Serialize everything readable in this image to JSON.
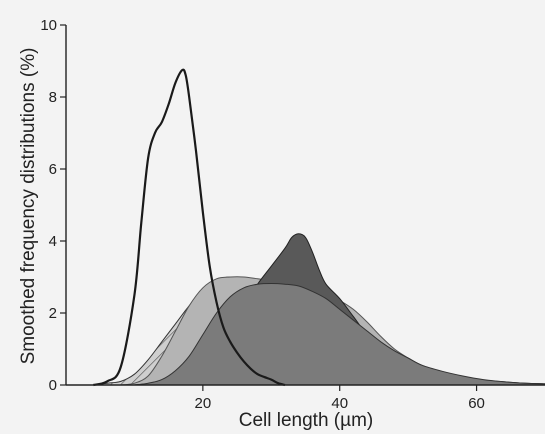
{
  "chart_data": {
    "type": "area",
    "title": "",
    "xlabel": "Cell length (µm)",
    "ylabel": "Smoothed frequency distributions (%)",
    "xlim": [
      0,
      70
    ],
    "ylim": [
      0,
      10
    ],
    "x_ticks": [
      "20",
      "40",
      "60"
    ],
    "x_tick_values": [
      20,
      40,
      60
    ],
    "y_ticks": [
      "0",
      "2",
      "4",
      "6",
      "8",
      "10"
    ],
    "y_tick_values": [
      0,
      2,
      4,
      6,
      8,
      10
    ],
    "grid": false,
    "series": [
      {
        "style": "hatched",
        "fill": "#c9c9c9",
        "stroke": "#333333",
        "points": [
          [
            4,
            0
          ],
          [
            6,
            0.05
          ],
          [
            8,
            0.1
          ],
          [
            10,
            0.3
          ],
          [
            12,
            0.7
          ],
          [
            14,
            1.2
          ],
          [
            16,
            1.7
          ],
          [
            18,
            2.2
          ],
          [
            20,
            2.6
          ],
          [
            22,
            2.9
          ],
          [
            24,
            3.0
          ],
          [
            26,
            2.9
          ],
          [
            28,
            2.6
          ],
          [
            30,
            2.2
          ],
          [
            32,
            1.8
          ],
          [
            34,
            1.3
          ],
          [
            36,
            0.8
          ],
          [
            38,
            0.5
          ],
          [
            40,
            0.25
          ],
          [
            42,
            0.1
          ],
          [
            44,
            0.03
          ],
          [
            46,
            0
          ]
        ]
      },
      {
        "style": "light",
        "fill": "#b4b4b4",
        "stroke": "#555555",
        "points": [
          [
            8,
            0
          ],
          [
            10,
            0.05
          ],
          [
            12,
            0.25
          ],
          [
            14,
            0.8
          ],
          [
            16,
            1.5
          ],
          [
            18,
            2.2
          ],
          [
            20,
            2.7
          ],
          [
            22,
            2.95
          ],
          [
            24,
            3.0
          ],
          [
            26,
            3.0
          ],
          [
            28,
            2.95
          ],
          [
            30,
            2.9
          ],
          [
            32,
            2.85
          ],
          [
            34,
            2.8
          ],
          [
            36,
            2.7
          ],
          [
            38,
            2.55
          ],
          [
            40,
            2.35
          ],
          [
            42,
            2.1
          ],
          [
            44,
            1.75
          ],
          [
            46,
            1.35
          ],
          [
            48,
            1.0
          ],
          [
            50,
            0.75
          ],
          [
            52,
            0.55
          ],
          [
            55,
            0.35
          ],
          [
            58,
            0.22
          ],
          [
            61,
            0.14
          ],
          [
            64,
            0.09
          ],
          [
            67,
            0.05
          ],
          [
            70,
            0.03
          ]
        ]
      },
      {
        "style": "dark",
        "fill": "#595959",
        "stroke": "#222222",
        "points": [
          [
            10,
            0
          ],
          [
            14,
            0.1
          ],
          [
            18,
            0.4
          ],
          [
            20,
            0.7
          ],
          [
            22,
            1.1
          ],
          [
            24,
            1.6
          ],
          [
            26,
            2.2
          ],
          [
            28,
            2.8
          ],
          [
            30,
            3.3
          ],
          [
            32,
            3.8
          ],
          [
            33,
            4.1
          ],
          [
            34,
            4.2
          ],
          [
            35,
            4.1
          ],
          [
            36,
            3.7
          ],
          [
            37,
            3.2
          ],
          [
            38,
            2.8
          ],
          [
            40,
            2.4
          ],
          [
            42,
            1.9
          ],
          [
            44,
            1.4
          ],
          [
            46,
            1.1
          ],
          [
            48,
            0.85
          ],
          [
            50,
            0.6
          ],
          [
            52,
            0.45
          ],
          [
            55,
            0.3
          ],
          [
            58,
            0.2
          ],
          [
            61,
            0.13
          ],
          [
            64,
            0.08
          ],
          [
            67,
            0.05
          ],
          [
            70,
            0.03
          ]
        ]
      },
      {
        "style": "mid",
        "fill": "#7b7b7b",
        "stroke": "#333333",
        "points": [
          [
            10,
            0
          ],
          [
            12,
            0.05
          ],
          [
            14,
            0.15
          ],
          [
            16,
            0.4
          ],
          [
            18,
            0.8
          ],
          [
            20,
            1.4
          ],
          [
            22,
            2.0
          ],
          [
            24,
            2.45
          ],
          [
            26,
            2.7
          ],
          [
            28,
            2.8
          ],
          [
            30,
            2.82
          ],
          [
            32,
            2.8
          ],
          [
            34,
            2.75
          ],
          [
            36,
            2.6
          ],
          [
            38,
            2.4
          ],
          [
            40,
            2.1
          ],
          [
            42,
            1.8
          ],
          [
            44,
            1.5
          ],
          [
            46,
            1.2
          ],
          [
            48,
            0.95
          ],
          [
            50,
            0.75
          ],
          [
            52,
            0.55
          ],
          [
            55,
            0.38
          ],
          [
            58,
            0.25
          ],
          [
            61,
            0.15
          ],
          [
            64,
            0.09
          ],
          [
            67,
            0.05
          ],
          [
            70,
            0.03
          ]
        ]
      },
      {
        "style": "line",
        "fill": "none",
        "stroke": "#1a1a1a",
        "points": [
          [
            4,
            0
          ],
          [
            6,
            0.1
          ],
          [
            8,
            0.5
          ],
          [
            10,
            2.5
          ],
          [
            11,
            4.5
          ],
          [
            12,
            6.3
          ],
          [
            13,
            7.0
          ],
          [
            14,
            7.3
          ],
          [
            15,
            7.8
          ],
          [
            16,
            8.4
          ],
          [
            17,
            8.75
          ],
          [
            17.5,
            8.6
          ],
          [
            18,
            8.0
          ],
          [
            19,
            6.5
          ],
          [
            20,
            4.8
          ],
          [
            21,
            3.3
          ],
          [
            22,
            2.3
          ],
          [
            23,
            1.6
          ],
          [
            24,
            1.2
          ],
          [
            25,
            0.9
          ],
          [
            26,
            0.65
          ],
          [
            27,
            0.45
          ],
          [
            28,
            0.3
          ],
          [
            29,
            0.22
          ],
          [
            30,
            0.15
          ],
          [
            31,
            0.05
          ],
          [
            32,
            0
          ]
        ]
      }
    ]
  }
}
